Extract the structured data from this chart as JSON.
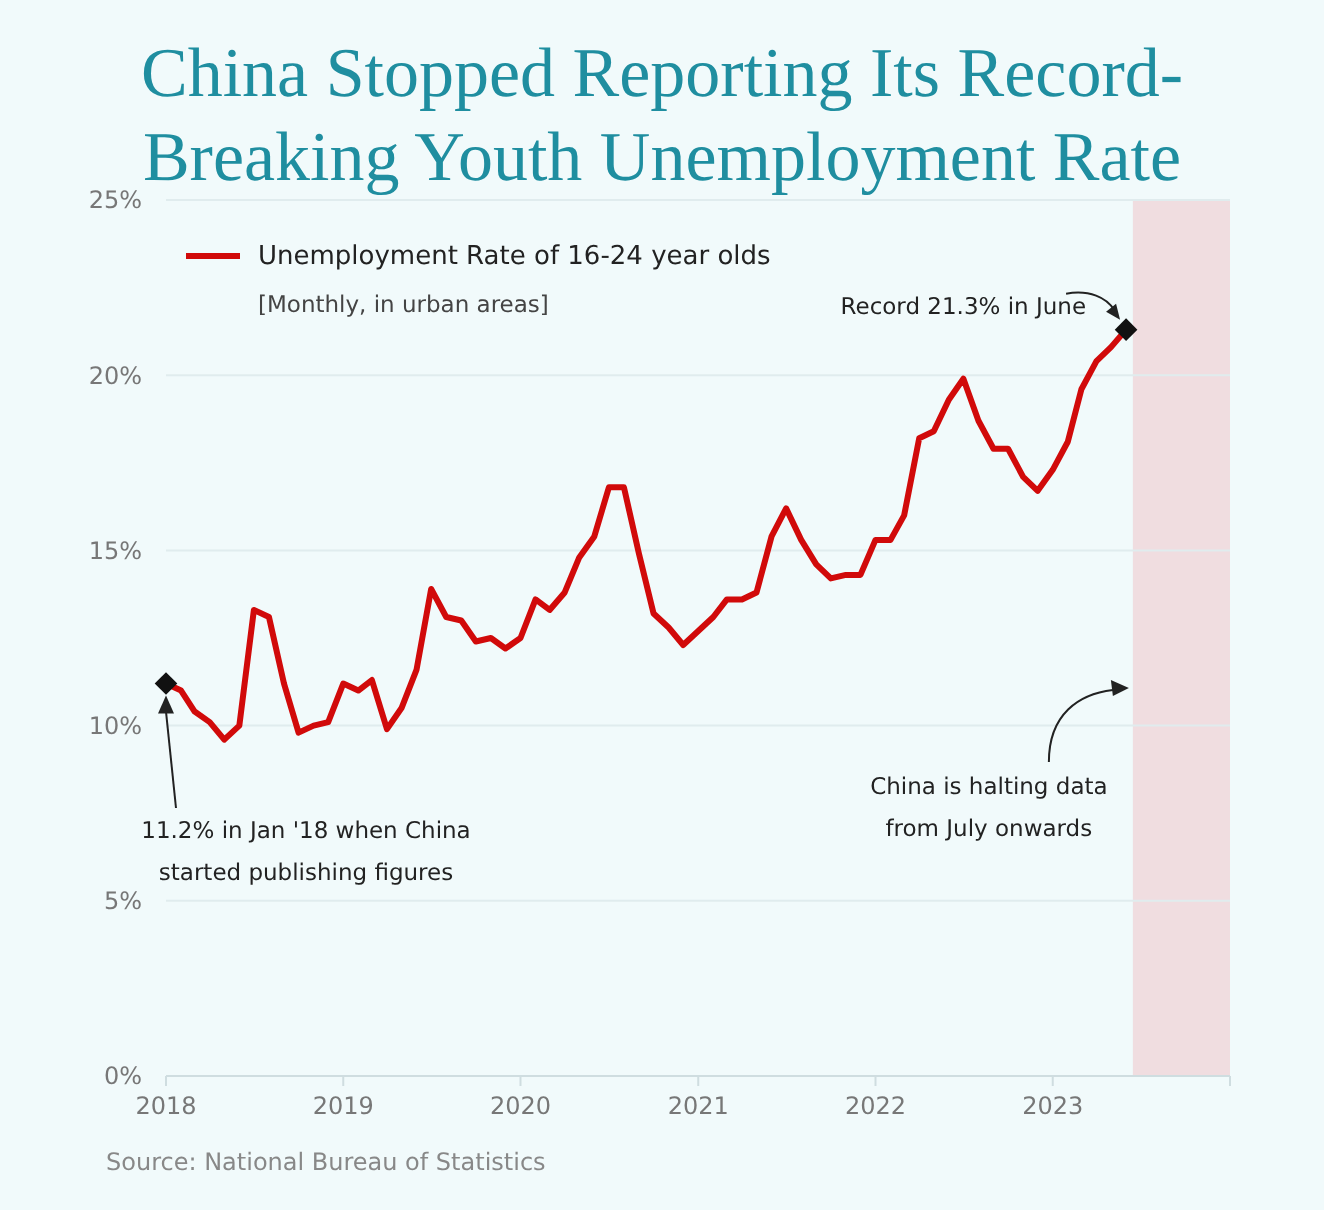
{
  "chart_data": {
    "type": "line",
    "title": "China Stopped Reporting Its Record-Breaking Youth Unemployment Rate",
    "subtitle": "[Monthly, in urban areas]",
    "x": [
      "2018-01",
      "2018-02",
      "2018-03",
      "2018-04",
      "2018-05",
      "2018-06",
      "2018-07",
      "2018-08",
      "2018-09",
      "2018-10",
      "2018-11",
      "2018-12",
      "2019-01",
      "2019-02",
      "2019-03",
      "2019-04",
      "2019-05",
      "2019-06",
      "2019-07",
      "2019-08",
      "2019-09",
      "2019-10",
      "2019-11",
      "2019-12",
      "2020-01",
      "2020-02",
      "2020-03",
      "2020-04",
      "2020-05",
      "2020-06",
      "2020-07",
      "2020-08",
      "2020-09",
      "2020-10",
      "2020-11",
      "2020-12",
      "2021-01",
      "2021-02",
      "2021-03",
      "2021-04",
      "2021-05",
      "2021-06",
      "2021-07",
      "2021-08",
      "2021-09",
      "2021-10",
      "2021-11",
      "2021-12",
      "2022-01",
      "2022-02",
      "2022-03",
      "2022-04",
      "2022-05",
      "2022-06",
      "2022-07",
      "2022-08",
      "2022-09",
      "2022-10",
      "2022-11",
      "2022-12",
      "2023-01",
      "2023-02",
      "2023-03",
      "2023-04",
      "2023-05",
      "2023-06"
    ],
    "series": [
      {
        "name": "Unemployment Rate of 16-24 year olds",
        "color": "#d10a0a",
        "values": [
          11.2,
          11.0,
          10.4,
          10.1,
          9.6,
          10.0,
          13.3,
          13.1,
          11.2,
          9.8,
          10.0,
          10.1,
          11.2,
          11.0,
          11.3,
          9.9,
          10.5,
          11.6,
          13.9,
          13.1,
          13.0,
          12.4,
          12.5,
          12.2,
          12.5,
          13.6,
          13.3,
          13.8,
          14.8,
          15.4,
          16.8,
          16.8,
          14.9,
          13.2,
          12.8,
          12.3,
          12.7,
          13.1,
          13.6,
          13.6,
          13.8,
          15.4,
          16.2,
          15.3,
          14.6,
          14.2,
          14.3,
          14.3,
          15.3,
          15.3,
          16.0,
          18.2,
          18.4,
          19.3,
          19.9,
          18.7,
          17.9,
          17.9,
          17.1,
          16.7,
          17.3,
          18.1,
          19.6,
          20.4,
          20.8,
          21.3
        ]
      }
    ],
    "xlim": [
      "2018",
      "2024"
    ],
    "xticks": [
      {
        "value": "2018",
        "label": "2018"
      },
      {
        "value": "2019",
        "label": "2019"
      },
      {
        "value": "2020",
        "label": "2020"
      },
      {
        "value": "2021",
        "label": "2021"
      },
      {
        "value": "2022",
        "label": "2022"
      },
      {
        "value": "2023",
        "label": "2023"
      }
    ],
    "ylim": [
      0,
      25
    ],
    "yticks": [
      {
        "value": 0,
        "label": "0%"
      },
      {
        "value": 5,
        "label": "5%"
      },
      {
        "value": 10,
        "label": "10%"
      },
      {
        "value": 15,
        "label": "15%"
      },
      {
        "value": 20,
        "label": "20%"
      },
      {
        "value": 25,
        "label": "25%"
      }
    ],
    "grid": "y",
    "legend": "top left",
    "bands": [
      {
        "axis": "x",
        "from": "2023-06-15",
        "to": "2024",
        "label": "China is halting data from July onwards",
        "color": "#f0dde0"
      }
    ],
    "annotations": [
      "11.2% in Jan '18 when China started publishing figures",
      {
        "text": "Record 21.3% in June",
        "x": "2023-06",
        "y": 21.3
      },
      "Source: National Bureau of Statistics"
    ]
  }
}
